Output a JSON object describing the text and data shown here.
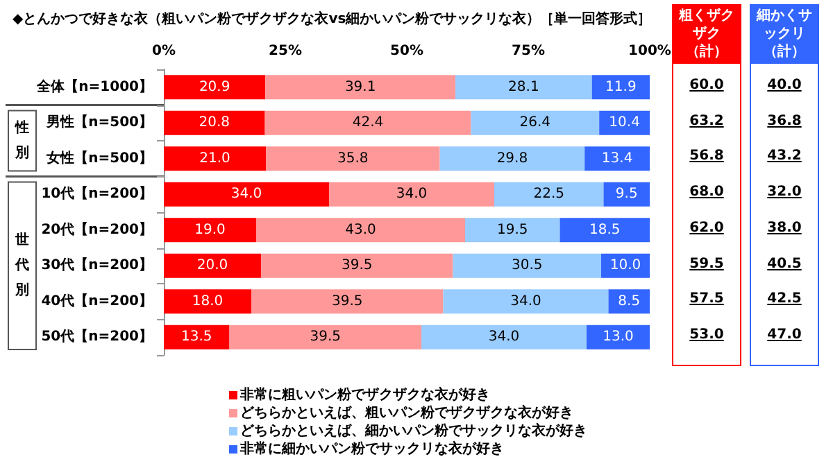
{
  "chart_data": [
    {
      "type": "bar",
      "orientation": "horizontal",
      "stacked": true,
      "title": "◆とんかつで好きな衣（粗いパン粉でザクザクな衣vs細かいパン粉でサックリな衣）［単一回答形式］",
      "categories": [
        "全体【n=1000】",
        "男性【n=500】",
        "女性【n=500】",
        "10代【n=200】",
        "20代【n=200】",
        "30代【n=200】",
        "40代【n=200】",
        "50代【n=200】"
      ],
      "series": [
        {
          "name": "非常に粗いパン粉でザクザクな衣が好き",
          "color": "#ff0000",
          "values": [
            20.9,
            20.8,
            21.0,
            34.0,
            19.0,
            20.0,
            18.0,
            13.5
          ],
          "value_labels": [
            "20.9",
            "20.8",
            "21.0",
            "34.0",
            "19.0",
            "20.0",
            "18.0",
            "13.5"
          ]
        },
        {
          "name": "どちらかといえば、粗いパン粉でザクザクな衣が好き",
          "color": "#ff9999",
          "values": [
            39.1,
            42.4,
            35.8,
            34.0,
            43.0,
            39.5,
            39.5,
            39.5
          ],
          "value_labels": [
            "39.1",
            "42.4",
            "35.8",
            "34.0",
            "43.0",
            "39.5",
            "39.5",
            "39.5"
          ]
        },
        {
          "name": "どちらかといえば、細かいパン粉でサックリな衣が好き",
          "color": "#99ccff",
          "values": [
            28.1,
            26.4,
            29.8,
            22.5,
            19.5,
            30.5,
            34.0,
            34.0
          ],
          "value_labels": [
            "28.1",
            "26.4",
            "29.8",
            "22.5",
            "19.5",
            "30.5",
            "34.0",
            "34.0"
          ]
        },
        {
          "name": "非常に細かいパン粉でサックリな衣が好き",
          "color": "#3366ff",
          "values": [
            11.9,
            10.4,
            13.4,
            9.5,
            18.5,
            10.0,
            8.5,
            13.0
          ],
          "value_labels": [
            "11.9",
            "10.4",
            "13.4",
            "9.5",
            "18.5",
            "10.0",
            "8.5",
            "13.0"
          ]
        }
      ],
      "xlim": [
        0,
        100
      ],
      "xticks": [
        {
          "value": 0,
          "label": "0%"
        },
        {
          "value": 25,
          "label": "25%"
        },
        {
          "value": 50,
          "label": "50%"
        },
        {
          "value": 75,
          "label": "75%"
        },
        {
          "value": 100,
          "label": "100%"
        }
      ],
      "grid": false,
      "legend": "bottom",
      "annotations": [
        "性別",
        "世代別"
      ]
    },
    {
      "type": "other",
      "colors": [
        "#ff0000",
        "#3366ff"
      ],
      "annotations": [
        "粗くザクザク（計）",
        "60.0",
        "63.2",
        "56.8",
        "68.0",
        "62.0",
        "59.5",
        "57.5",
        "53.0",
        "細かくサックリ（計）",
        "40.0",
        "36.8",
        "43.2",
        "32.0",
        "38.0",
        "40.5",
        "42.5",
        "47.0"
      ]
    }
  ]
}
